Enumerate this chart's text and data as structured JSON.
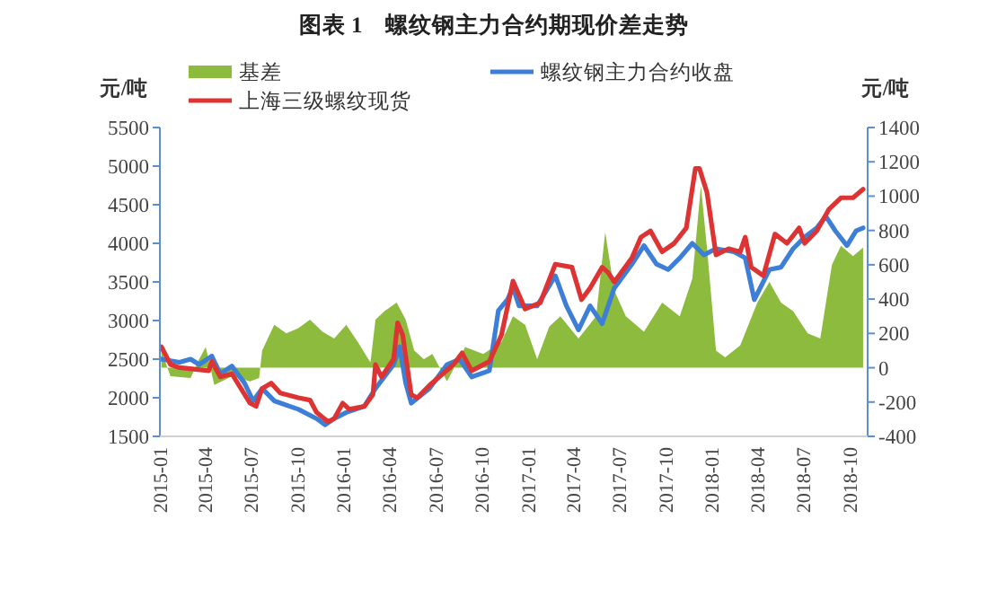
{
  "chart_data": {
    "type": "line",
    "title": "图表 1　螺纹钢主力合约期现价差走势",
    "ylabel": "元/吨",
    "y2label": "元/吨",
    "legend": "top",
    "xlim": [
      "2015-01-01",
      "2018-11-06"
    ],
    "xticks": [
      "2015-01",
      "2015-04",
      "2015-07",
      "2015-10",
      "2016-01",
      "2016-04",
      "2016-07",
      "2016-10",
      "2017-01",
      "2017-04",
      "2017-07",
      "2017-10",
      "2018-01",
      "2018-04",
      "2018-07",
      "2018-10"
    ],
    "ylim": [
      1500,
      5500
    ],
    "yticks": [
      1500,
      2000,
      2500,
      3000,
      3500,
      4000,
      4500,
      5000,
      5500
    ],
    "y2lim": [
      -400,
      1400
    ],
    "y2ticks": [
      -400,
      -200,
      0,
      200,
      400,
      600,
      800,
      1000,
      1200,
      1400
    ],
    "series": [
      {
        "name": "基差",
        "type": "area",
        "axis": "y2",
        "color": "#8dbb3e",
        "x": [
          "2015-01-04",
          "2015-01-22",
          "2015-03-03",
          "2015-03-20",
          "2015-04-02",
          "2015-04-19",
          "2015-05-24",
          "2015-06-29",
          "2015-07-17",
          "2015-07-23",
          "2015-08-16",
          "2015-09-09",
          "2015-10-03",
          "2015-10-26",
          "2015-11-20",
          "2015-12-13",
          "2016-01-06",
          "2016-01-29",
          "2016-02-23",
          "2016-03-04",
          "2016-03-22",
          "2016-04-15",
          "2016-05-03",
          "2016-05-20",
          "2016-06-08",
          "2016-06-25",
          "2016-07-24",
          "2016-08-29",
          "2016-10-04",
          "2016-11-09",
          "2016-12-02",
          "2016-12-26",
          "2017-01-19",
          "2017-02-12",
          "2017-03-06",
          "2017-04-11",
          "2017-05-16",
          "2017-06-03",
          "2017-06-21",
          "2017-07-14",
          "2017-08-19",
          "2017-09-24",
          "2017-10-29",
          "2017-11-23",
          "2017-12-10",
          "2017-12-22",
          "2018-01-09",
          "2018-01-27",
          "2018-02-26",
          "2018-04-01",
          "2018-04-25",
          "2018-05-18",
          "2018-06-11",
          "2018-07-10",
          "2018-08-04",
          "2018-08-27",
          "2018-09-14",
          "2018-10-08",
          "2018-10-28"
        ],
        "values": [
          100,
          -50,
          -60,
          50,
          120,
          -100,
          -50,
          -80,
          -60,
          100,
          250,
          200,
          230,
          280,
          210,
          170,
          250,
          150,
          30,
          280,
          330,
          380,
          280,
          100,
          50,
          80,
          -80,
          120,
          80,
          150,
          300,
          250,
          50,
          240,
          300,
          170,
          300,
          790,
          450,
          300,
          210,
          380,
          300,
          520,
          1060,
          700,
          100,
          60,
          130,
          380,
          500,
          380,
          330,
          200,
          170,
          600,
          710,
          650,
          700
        ]
      },
      {
        "name": "螺纹钢主力合约收盘",
        "color": "#3d7fd6",
        "x": [
          "2015-01-04",
          "2015-02-09",
          "2015-03-03",
          "2015-03-20",
          "2015-04-14",
          "2015-05-01",
          "2015-05-24",
          "2015-06-18",
          "2015-07-05",
          "2015-07-23",
          "2015-08-16",
          "2015-10-03",
          "2015-11-08",
          "2015-11-25",
          "2015-12-13",
          "2016-01-06",
          "2016-02-11",
          "2016-03-04",
          "2016-04-09",
          "2016-04-21",
          "2016-05-03",
          "2016-05-14",
          "2016-06-19",
          "2016-07-24",
          "2016-08-18",
          "2016-09-11",
          "2016-10-16",
          "2016-11-03",
          "2016-11-21",
          "2016-12-02",
          "2016-12-14",
          "2017-01-19",
          "2017-02-24",
          "2017-03-18",
          "2017-04-11",
          "2017-05-04",
          "2017-05-28",
          "2017-06-21",
          "2017-07-26",
          "2017-08-19",
          "2017-09-13",
          "2017-10-06",
          "2017-10-29",
          "2017-11-23",
          "2017-12-16",
          "2018-01-09",
          "2018-02-14",
          "2018-03-08",
          "2018-03-26",
          "2018-04-25",
          "2018-05-18",
          "2018-06-11",
          "2018-07-04",
          "2018-07-28",
          "2018-08-15",
          "2018-09-03",
          "2018-09-26",
          "2018-10-14",
          "2018-10-28"
        ],
        "values": [
          2500,
          2460,
          2500,
          2430,
          2540,
          2310,
          2410,
          2190,
          1960,
          2120,
          1960,
          1850,
          1730,
          1650,
          1730,
          1810,
          1890,
          2120,
          2430,
          2660,
          2190,
          1930,
          2120,
          2430,
          2500,
          2270,
          2350,
          3130,
          3270,
          3430,
          3190,
          3190,
          3580,
          3190,
          2880,
          3190,
          2960,
          3420,
          3730,
          3970,
          3730,
          3660,
          3810,
          4000,
          3850,
          3930,
          3890,
          3810,
          3270,
          3660,
          3690,
          3930,
          4080,
          4200,
          4350,
          4160,
          3970,
          4160,
          4200
        ]
      },
      {
        "name": "上海三级螺纹现货",
        "color": "#dd3333",
        "x": [
          "2015-01-04",
          "2015-01-22",
          "2015-02-09",
          "2015-04-08",
          "2015-04-14",
          "2015-05-01",
          "2015-05-24",
          "2015-06-29",
          "2015-07-11",
          "2015-07-23",
          "2015-08-10",
          "2015-08-28",
          "2015-10-03",
          "2015-10-26",
          "2015-11-08",
          "2015-12-01",
          "2015-12-13",
          "2015-12-30",
          "2016-01-12",
          "2016-02-11",
          "2016-02-28",
          "2016-03-04",
          "2016-03-16",
          "2016-04-09",
          "2016-04-17",
          "2016-04-27",
          "2016-05-14",
          "2016-05-26",
          "2016-06-19",
          "2016-08-06",
          "2016-08-23",
          "2016-09-11",
          "2016-10-16",
          "2016-11-09",
          "2016-12-02",
          "2016-12-26",
          "2017-01-25",
          "2017-02-24",
          "2017-03-29",
          "2017-04-17",
          "2017-05-04",
          "2017-05-28",
          "2017-06-09",
          "2017-06-21",
          "2017-07-26",
          "2017-08-13",
          "2017-09-01",
          "2017-09-24",
          "2017-10-18",
          "2017-11-11",
          "2017-11-29",
          "2017-12-07",
          "2017-12-22",
          "2018-01-09",
          "2018-02-03",
          "2018-02-26",
          "2018-03-08",
          "2018-03-20",
          "2018-04-13",
          "2018-05-06",
          "2018-05-30",
          "2018-06-23",
          "2018-07-04",
          "2018-07-28",
          "2018-08-21",
          "2018-09-14",
          "2018-10-08",
          "2018-10-28"
        ],
        "values": [
          2660,
          2430,
          2390,
          2350,
          2470,
          2270,
          2310,
          1930,
          1890,
          2120,
          2190,
          2060,
          2000,
          1970,
          1810,
          1690,
          1730,
          1930,
          1850,
          1890,
          2040,
          2430,
          2270,
          2500,
          2970,
          2810,
          2040,
          2000,
          2160,
          2430,
          2580,
          2350,
          2470,
          2810,
          3510,
          3150,
          3230,
          3730,
          3690,
          3270,
          3420,
          3690,
          3620,
          3500,
          3810,
          4080,
          4160,
          3890,
          4000,
          4200,
          4970,
          4970,
          4660,
          3850,
          3930,
          3890,
          4080,
          3690,
          3580,
          4120,
          4000,
          4200,
          4000,
          4160,
          4440,
          4590,
          4590,
          4700
        ]
      }
    ]
  }
}
